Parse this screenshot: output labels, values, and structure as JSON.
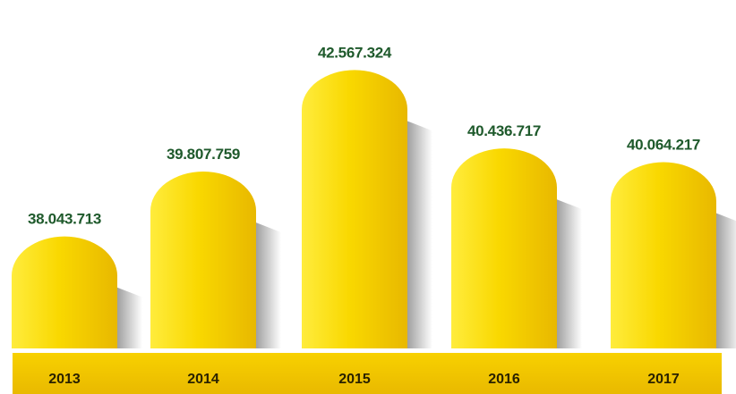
{
  "chart_data": {
    "type": "bar",
    "categories": [
      "2013",
      "2014",
      "2015",
      "2016",
      "2017"
    ],
    "values": [
      38043713,
      39807759,
      42567324,
      40436717,
      40064217
    ],
    "value_labels": [
      "38.043.713",
      "39.807.759",
      "42.567.324",
      "40.436.717",
      "40.064.217"
    ],
    "title": "",
    "xlabel": "",
    "ylabel": "",
    "ylim": [
      35000000,
      43500000
    ],
    "grid": false,
    "legend": "none"
  },
  "colors": {
    "bar_light": "#ffec3d",
    "bar_mid": "#f9d800",
    "bar_dark": "#e8b800",
    "shadow": "#6f6f6f",
    "band_top": "#f8d100",
    "band_bottom": "#e9b900",
    "value_text": "#1f5a2c",
    "year_text": "#2a2200"
  }
}
